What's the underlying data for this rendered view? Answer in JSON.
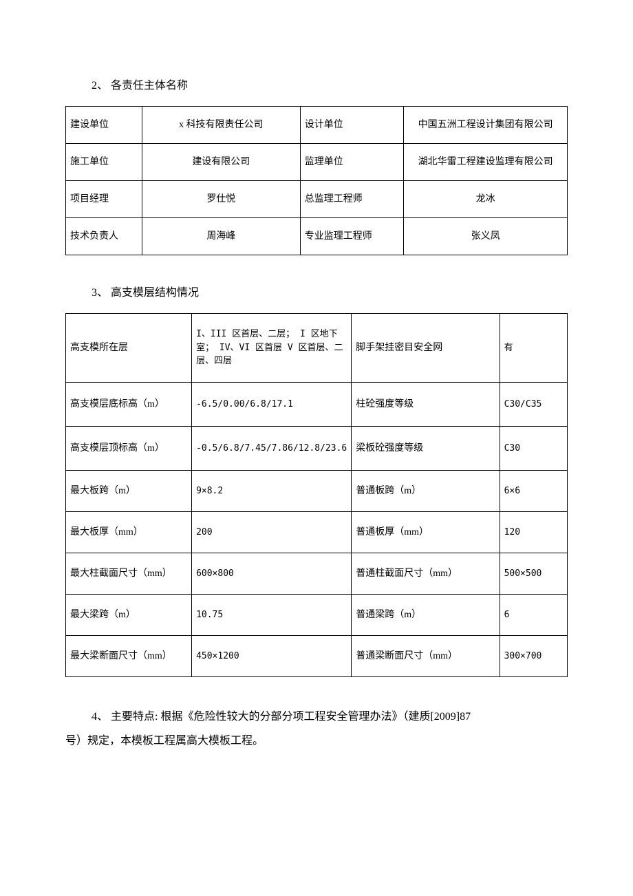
{
  "heading1": "2、 各责任主体名称",
  "table1": {
    "rows": [
      {
        "label1": "建设单位",
        "value1": "x 科技有限责任公司",
        "label2": "设计单位",
        "value2": "中国五洲工程设计集团有限公司"
      },
      {
        "label1": "施工单位",
        "value1": "建设有限公司",
        "label2": "监理单位",
        "value2": "湖北华雷工程建设监理有限公司"
      },
      {
        "label1": "项目经理",
        "value1": "罗仕悦",
        "label2": "总监理工程师",
        "value2": "龙冰"
      },
      {
        "label1": "技术负责人",
        "value1": "周海峰",
        "label2": "专业监理工程师",
        "value2": "张义凤"
      }
    ]
  },
  "heading2": "3、 高支模层结构情况",
  "table2": {
    "rows": [
      {
        "a": "高支模所在层",
        "b": "I、III 区首层、二层； I 区地下室； IV、VI 区首层  V 区首层、二层、四层",
        "c": "脚手架挂密目安全网",
        "d": "有",
        "cls": "row-tall"
      },
      {
        "a": "高支模层底标高（m）",
        "b": "-6.5/0.00/6.8/17.1",
        "c": "柱砼强度等级",
        "d": "C30/C35",
        "cls": "row-med"
      },
      {
        "a": "高支模层顶标高（m）",
        "b": "-0.5/6.8/7.45/7.86/12.8/23.6",
        "c": "梁板砼强度等级",
        "d": "C30",
        "cls": "row-med"
      },
      {
        "a": "最大板跨（m）",
        "b": "9×8.2",
        "c": "普通板跨（m）",
        "d": "6×6",
        "cls": "row-normal"
      },
      {
        "a": "最大板厚（mm）",
        "b": "200",
        "c": "普通板厚（mm）",
        "d": "120",
        "cls": "row-normal"
      },
      {
        "a": "最大柱截面尺寸（mm）",
        "b": "600×800",
        "c": "普通柱截面尺寸（mm）",
        "d": "500×500",
        "cls": "row-normal"
      },
      {
        "a": "最大梁跨（m）",
        "b": "10.75",
        "c": "普通梁跨（m）",
        "d": "6",
        "cls": "row-normal"
      },
      {
        "a": "最大梁断面尺寸（mm）",
        "b": "450×1200",
        "c": "普通梁断面尺寸（mm）",
        "d": "300×700",
        "cls": "row-normal"
      }
    ]
  },
  "paragraph1": "4、 主要特点: 根据《危险性较大的分部分项工程安全管理办法》（建质[2009]87",
  "paragraph2": "号）规定，本模板工程属高大模板工程。"
}
